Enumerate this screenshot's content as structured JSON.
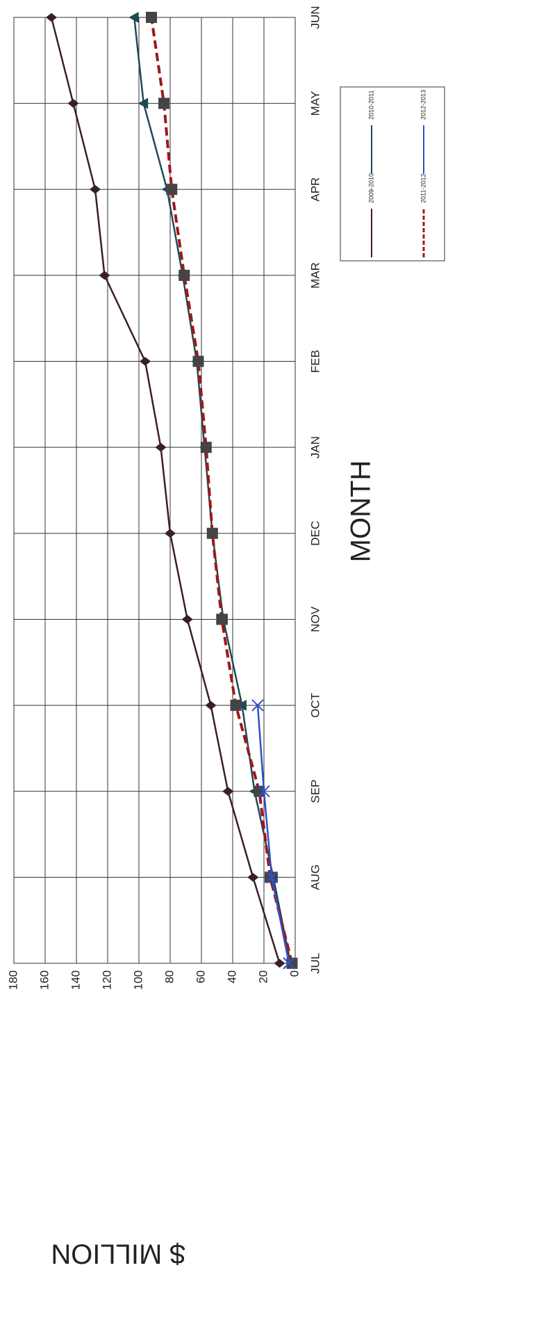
{
  "chart_data": {
    "type": "line",
    "x_label": "MONTH",
    "y_label": "$ MILLION",
    "categories": [
      "JUL",
      "AUG",
      "SEP",
      "OCT",
      "NOV",
      "DEC",
      "JAN",
      "FEB",
      "MAR",
      "APR",
      "MAY",
      "JUN"
    ],
    "series": [
      {
        "name": "2009-2010",
        "color": "#3a1f2a",
        "marker": "diamond",
        "dashed": false,
        "values": [
          10,
          27,
          43,
          54,
          69,
          80,
          86,
          96,
          122,
          128,
          142,
          156
        ]
      },
      {
        "name": "2010-2011",
        "color": "#1e4a55",
        "marker": "triangle",
        "dashed": false,
        "values": [
          3,
          14,
          26,
          34,
          46,
          53,
          58,
          63,
          72,
          82,
          97,
          103
        ]
      },
      {
        "name": "2011-2012",
        "color": "#a01818",
        "marker": "square",
        "dashed": true,
        "values": [
          2,
          16,
          23,
          38,
          47,
          53,
          57,
          62,
          71,
          79,
          84,
          92
        ]
      },
      {
        "name": "2012-2013",
        "color": "#3050c8",
        "marker": "x",
        "dashed": false,
        "values": [
          4,
          15,
          20,
          24,
          null,
          null,
          null,
          null,
          null,
          null,
          null,
          null
        ]
      }
    ],
    "ylim": [
      0,
      180
    ],
    "yticks": [
      0,
      20,
      40,
      60,
      80,
      100,
      120,
      140,
      160,
      180
    ],
    "grid": true
  }
}
